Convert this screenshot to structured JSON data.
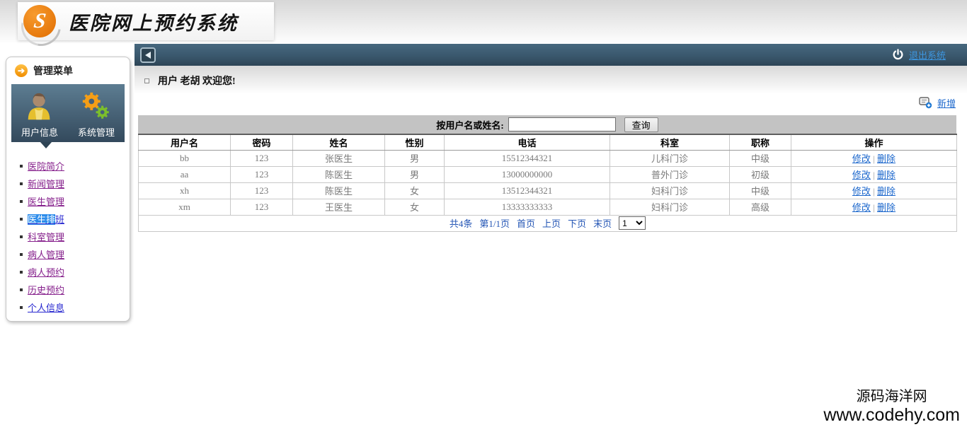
{
  "header": {
    "title": "医院网上预约系统",
    "logo_letter": "S"
  },
  "topbar": {
    "logout_label": "退出系统"
  },
  "welcome": {
    "text": "用户 老胡 欢迎您!"
  },
  "sidebar": {
    "menu_title": "管理菜单",
    "quick_items": [
      {
        "label": "用户信息"
      },
      {
        "label": "系统管理"
      }
    ],
    "items": [
      {
        "label": "医院简介",
        "state": "visited"
      },
      {
        "label": "新闻管理",
        "state": "visited"
      },
      {
        "label": "医生管理",
        "state": "visited"
      },
      {
        "label": "医生排班",
        "state": "selected",
        "selected_prefix": "医生排",
        "suffix": "班"
      },
      {
        "label": "科室管理",
        "state": "visited"
      },
      {
        "label": "病人管理",
        "state": "visited"
      },
      {
        "label": "病人预约",
        "state": "visited"
      },
      {
        "label": "历史预约",
        "state": "visited"
      },
      {
        "label": "个人信息",
        "state": "link"
      }
    ]
  },
  "toolbar": {
    "add_label": "新增"
  },
  "search": {
    "label": "按用户名或姓名:",
    "value": "",
    "button_label": "查询"
  },
  "table": {
    "headers": [
      "用户名",
      "密码",
      "姓名",
      "性别",
      "电话",
      "科室",
      "职称",
      "操作"
    ],
    "rows": [
      {
        "username": "bb",
        "password": "123",
        "name": "张医生",
        "gender": "男",
        "phone": "15512344321",
        "department": "儿科门诊",
        "title": "中级"
      },
      {
        "username": "aa",
        "password": "123",
        "name": "陈医生",
        "gender": "男",
        "phone": "13000000000",
        "department": "普外门诊",
        "title": "初级"
      },
      {
        "username": "xh",
        "password": "123",
        "name": "陈医生",
        "gender": "女",
        "phone": "13512344321",
        "department": "妇科门诊",
        "title": "中级"
      },
      {
        "username": "xm",
        "password": "123",
        "name": "王医生",
        "gender": "女",
        "phone": "13333333333",
        "department": "妇科门诊",
        "title": "高级"
      }
    ],
    "action_edit": "修改",
    "action_delete": "删除",
    "action_separator": "|"
  },
  "pagination": {
    "total": "共4条",
    "page": "第1/1页",
    "first": "首页",
    "prev": "上页",
    "next": "下页",
    "last": "末页",
    "page_select": "1"
  },
  "watermark": {
    "line1": "源码海洋网",
    "line2": "www.codehy.com"
  },
  "colors": {
    "accent_orange": "#ee7a10",
    "bar_top": "#47687f",
    "bar_bottom": "#2d4456",
    "link_blue": "#1a66cc",
    "visited_purple": "#86208c",
    "selection_blue": "#2e8deb",
    "search_band_gray": "#c3c3c3"
  }
}
